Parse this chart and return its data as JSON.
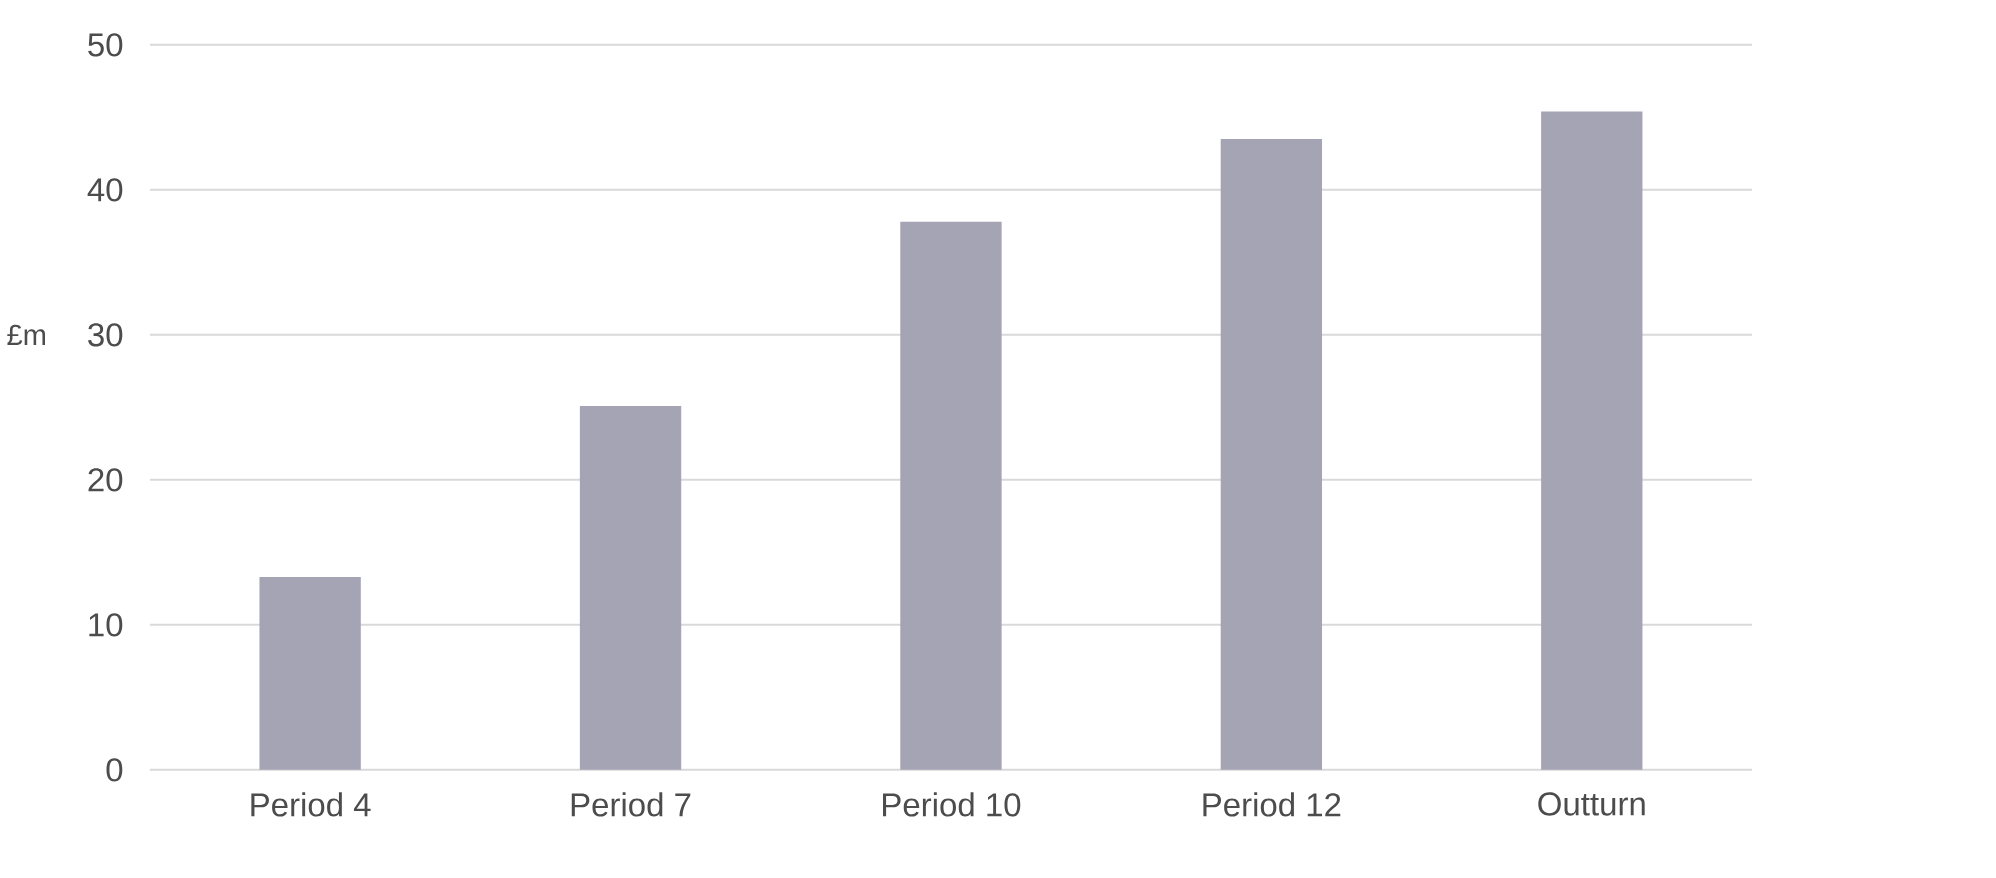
{
  "chart_data": {
    "type": "bar",
    "ylabel": "£m",
    "categories": [
      "Period 4",
      "Period 7",
      "Period 10",
      "Period 12",
      "Outturn"
    ],
    "values": [
      13.3,
      25.1,
      37.8,
      43.5,
      45.4
    ],
    "color": "#a5a4b4",
    "ylim": [
      0,
      50
    ],
    "yticks": [
      0,
      10,
      20,
      30,
      40,
      50
    ],
    "grid": "y"
  }
}
